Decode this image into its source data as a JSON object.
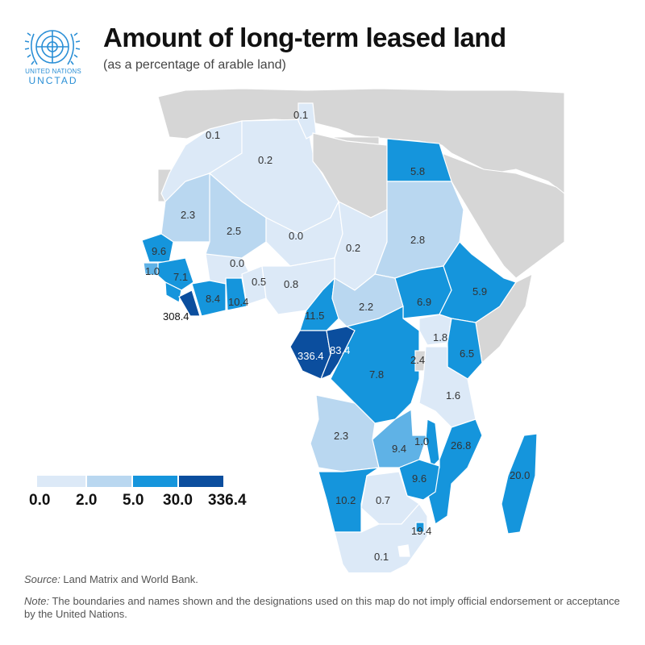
{
  "header": {
    "title": "Amount of long-term leased land",
    "subtitle": "(as a percentage of arable land)",
    "logo_line1": "UNITED NATIONS",
    "logo_line2": "UNCTAD"
  },
  "colors": {
    "class_0": "#dce9f7",
    "class_1": "#b9d7f0",
    "class_2": "#5fb2e6",
    "class_3": "#1595dc",
    "class_4": "#0b4e9e",
    "other_land": "#d6d6d6",
    "water": "#ffffff"
  },
  "legend": {
    "labels": [
      "0.0",
      "2.0",
      "5.0",
      "30.0",
      "336.4"
    ]
  },
  "regions": [
    {
      "value": "0.1"
    },
    {
      "value": "0.1"
    },
    {
      "value": "0.2"
    },
    {
      "value": "5.8"
    },
    {
      "value": "2.3"
    },
    {
      "value": "2.5"
    },
    {
      "value": "0.0"
    },
    {
      "value": "0.2"
    },
    {
      "value": "2.8"
    },
    {
      "value": "9.6"
    },
    {
      "value": "1.0"
    },
    {
      "value": "7.1"
    },
    {
      "value": "0.0"
    },
    {
      "value": "0.5"
    },
    {
      "value": "0.8"
    },
    {
      "value": "308.4"
    },
    {
      "value": "8.4"
    },
    {
      "value": "10.4"
    },
    {
      "value": "11.5"
    },
    {
      "value": "2.2"
    },
    {
      "value": "6.9"
    },
    {
      "value": "5.9"
    },
    {
      "value": "336.4"
    },
    {
      "value": "83.4"
    },
    {
      "value": "1.8"
    },
    {
      "value": "2.4"
    },
    {
      "value": "6.5"
    },
    {
      "value": "7.8"
    },
    {
      "value": "1.6"
    },
    {
      "value": "2.3"
    },
    {
      "value": "9.4"
    },
    {
      "value": "1.0"
    },
    {
      "value": "26.8"
    },
    {
      "value": "20.0"
    },
    {
      "value": "9.6"
    },
    {
      "value": "10.2"
    },
    {
      "value": "0.7"
    },
    {
      "value": "19.4"
    },
    {
      "value": "0.1"
    }
  ],
  "footer": {
    "source_label": "Source:",
    "source_text": " Land Matrix and World Bank.",
    "note_label": "Note:",
    "note_text": " The boundaries and names shown and the designations used on this map do not imply official endorsement or acceptance by the United Nations."
  }
}
